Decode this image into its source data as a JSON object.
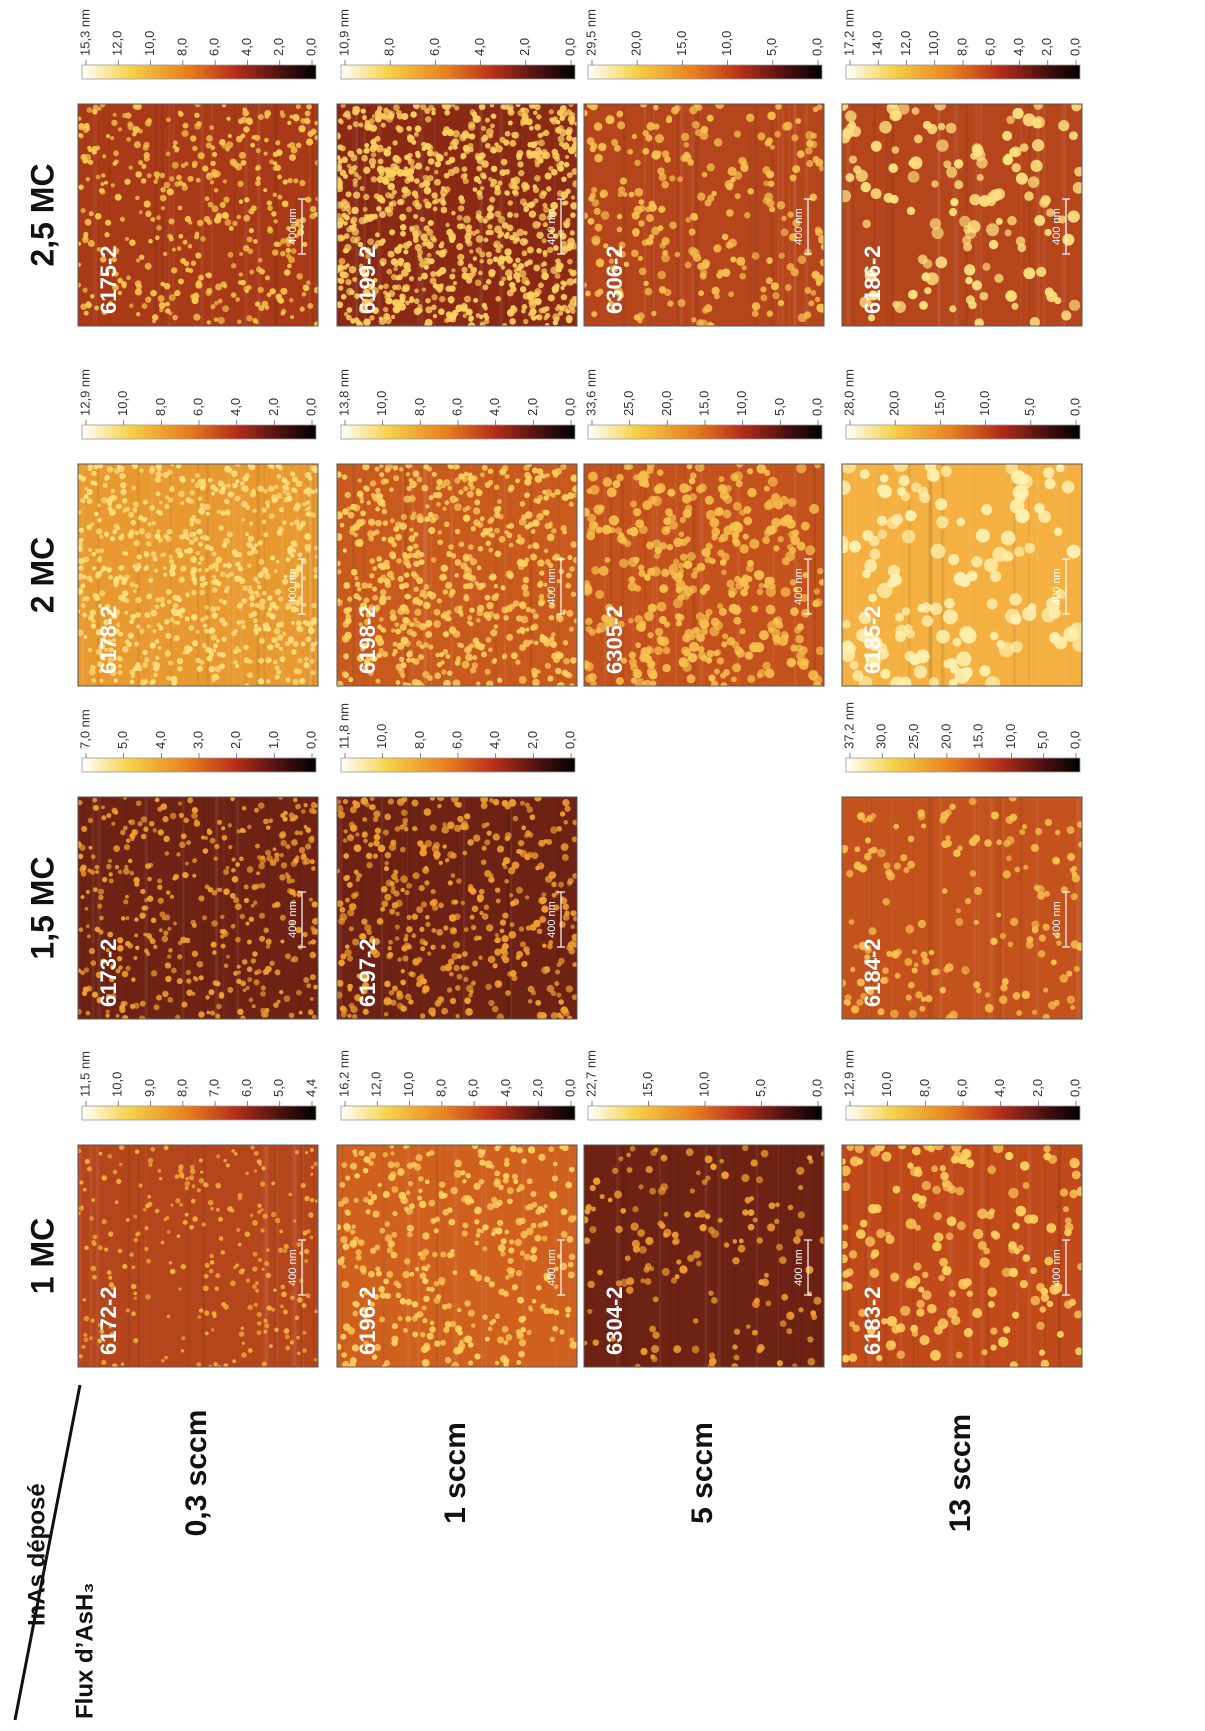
{
  "header": {
    "deposit_label": "InAs déposé",
    "flux_label": "Flux d’AsH₃",
    "columns": [
      "1 MC",
      "1,5 MC",
      "2 MC",
      "2,5 MC"
    ]
  },
  "rows": [
    {
      "label": "0,3 sccm",
      "cells": [
        {
          "id": "6172-2",
          "scale": "400 nm",
          "colorbar": [
            "11,5 nm",
            "10,0",
            "9,0",
            "8,0",
            "7,0",
            "6,0",
            "5,0",
            "4,4"
          ]
        },
        {
          "id": "6173-2",
          "scale": "400 nm",
          "colorbar": [
            "7,0 nm",
            "5,0",
            "4,0",
            "3,0",
            "2,0",
            "1,0",
            "0,0"
          ]
        },
        {
          "id": "6178-2",
          "scale": "400 nm",
          "colorbar": [
            "12,9 nm",
            "10,0",
            "8,0",
            "6,0",
            "4,0",
            "2,0",
            "0,0"
          ]
        },
        {
          "id": "6175-2",
          "scale": "400 nm",
          "colorbar": [
            "15,3 nm",
            "12,0",
            "10,0",
            "8,0",
            "6,0",
            "4,0",
            "2,0",
            "0,0"
          ]
        }
      ]
    },
    {
      "label": "1 sccm",
      "cells": [
        {
          "id": "6196-2",
          "scale": "400 nm",
          "colorbar": [
            "16,2 nm",
            "12,0",
            "10,0",
            "8,0",
            "6,0",
            "4,0",
            "2,0",
            "0,0"
          ]
        },
        {
          "id": "6197-2",
          "scale": "400 nm",
          "colorbar": [
            "11,8 nm",
            "10,0",
            "8,0",
            "6,0",
            "4,0",
            "2,0",
            "0,0"
          ]
        },
        {
          "id": "6198-2",
          "scale": "400 nm",
          "colorbar": [
            "13,8 nm",
            "10,0",
            "8,0",
            "6,0",
            "4,0",
            "2,0",
            "0,0"
          ]
        },
        {
          "id": "6199-2",
          "scale": "400 nm",
          "colorbar": [
            "10,9 nm",
            "8,0",
            "6,0",
            "4,0",
            "2,0",
            "0,0"
          ]
        }
      ]
    },
    {
      "label": "5 sccm",
      "cells": [
        {
          "id": "6304-2",
          "scale": "400 nm",
          "colorbar": [
            "22,7 nm",
            "15,0",
            "10,0",
            "5,0",
            "0,0"
          ]
        },
        null,
        {
          "id": "6305-2",
          "scale": "400 nm",
          "colorbar": [
            "33,6 nm",
            "25,0",
            "20,0",
            "15,0",
            "10,0",
            "5,0",
            "0,0"
          ]
        },
        {
          "id": "6306-2",
          "scale": "400 nm",
          "colorbar": [
            "29,5 nm",
            "20,0",
            "15,0",
            "10,0",
            "5,0",
            "0,0"
          ]
        }
      ]
    },
    {
      "label": "13 sccm",
      "cells": [
        {
          "id": "6183-2",
          "scale": "400 nm",
          "colorbar": [
            "12,9 nm",
            "10,0",
            "8,0",
            "6,0",
            "4,0",
            "2,0",
            "0,0"
          ]
        },
        {
          "id": "6184-2",
          "scale": "400 nm",
          "colorbar": [
            "37,2 nm",
            "30,0",
            "25,0",
            "20,0",
            "15,0",
            "10,0",
            "5,0",
            "0,0"
          ]
        },
        {
          "id": "6185-2",
          "scale": "400 nm",
          "colorbar": [
            "28,0 nm",
            "20,0",
            "15,0",
            "10,0",
            "5,0",
            "0,0"
          ]
        },
        {
          "id": "6186-2",
          "scale": "400 nm",
          "colorbar": [
            "17,2 nm",
            "14,0",
            "12,0",
            "10,0",
            "8,0",
            "6,0",
            "4,0",
            "2,0",
            "0,0"
          ]
        }
      ]
    }
  ]
}
